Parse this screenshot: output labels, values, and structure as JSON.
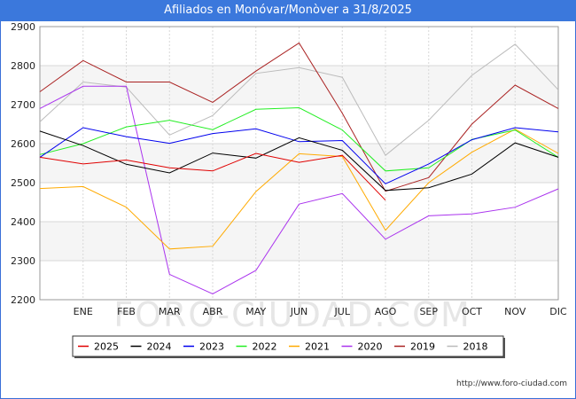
{
  "title": "Afiliados en Monóvar/Monòver a 31/8/2025",
  "watermark": "FORO-CIUDAD.COM",
  "footer_url": "http://www.foro-ciudad.com",
  "chart_data": {
    "type": "line",
    "categories": [
      "",
      "ENE",
      "FEB",
      "MAR",
      "ABR",
      "MAY",
      "JUN",
      "JUL",
      "AGO",
      "SEP",
      "OCT",
      "NOV",
      "DIC"
    ],
    "ylim": [
      2200,
      2900
    ],
    "yticks": [
      2200,
      2300,
      2400,
      2500,
      2600,
      2700,
      2800,
      2900
    ],
    "grid": true,
    "legend_position": "bottom",
    "series": [
      {
        "name": "2025",
        "color": "#e00000",
        "values": [
          2565,
          2548,
          2558,
          2538,
          2530,
          2575,
          2552,
          2570,
          2455,
          null,
          null,
          null,
          null
        ]
      },
      {
        "name": "2024",
        "color": "#000000",
        "values": [
          2632,
          2595,
          2547,
          2525,
          2576,
          2563,
          2615,
          2583,
          2480,
          2487,
          2522,
          2602,
          2565
        ]
      },
      {
        "name": "2023",
        "color": "#0000ee",
        "values": [
          2565,
          2641,
          2618,
          2601,
          2626,
          2638,
          2605,
          2608,
          2497,
          2548,
          2610,
          2641,
          2630
        ]
      },
      {
        "name": "2022",
        "color": "#22ee22",
        "values": [
          2572,
          2600,
          2643,
          2660,
          2636,
          2688,
          2692,
          2635,
          2530,
          2538,
          2611,
          2635,
          2565
        ]
      },
      {
        "name": "2021",
        "color": "#ffaa00",
        "values": [
          2485,
          2490,
          2437,
          2330,
          2337,
          2477,
          2574,
          2567,
          2378,
          2500,
          2578,
          2637,
          2575
        ]
      },
      {
        "name": "2020",
        "color": "#aa33ee",
        "values": [
          2690,
          2747,
          2747,
          2265,
          2215,
          2275,
          2445,
          2472,
          2355,
          2415,
          2420,
          2437,
          2484
        ]
      },
      {
        "name": "2019",
        "color": "#aa2222",
        "values": [
          2733,
          2813,
          2758,
          2758,
          2706,
          2786,
          2858,
          2678,
          2478,
          2513,
          2650,
          2750,
          2690
        ]
      },
      {
        "name": "2018",
        "color": "#bbbbbb",
        "values": [
          2656,
          2758,
          2745,
          2622,
          2672,
          2780,
          2795,
          2770,
          2570,
          2660,
          2775,
          2855,
          2738
        ]
      }
    ]
  }
}
